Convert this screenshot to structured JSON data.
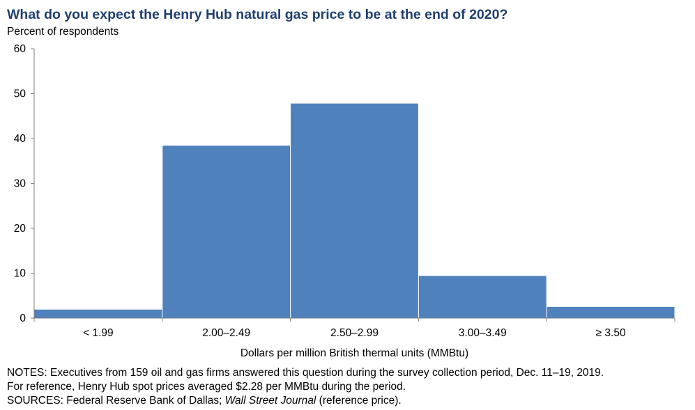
{
  "title": "What do you expect the Henry Hub natural gas price to be at the end of 2020?",
  "ylabel": "Percent of respondents",
  "notes": {
    "line1": "NOTES: Executives from 159 oil and gas firms answered this question during the survey collection period, Dec. 11–19, 2019.",
    "line2": "For reference, Henry Hub spot prices averaged $2.28 per MMBtu during the period.",
    "line3_prefix": "SOURCES: Federal Reserve Bank of Dallas; ",
    "line3_italic": "Wall Street Journal",
    "line3_suffix": " (reference price)."
  },
  "colors": {
    "bar": "#4f81bd",
    "title": "#1f3f6f",
    "axis": "#7f7f7f"
  },
  "chart_data": {
    "type": "bar",
    "title": "What do you expect the Henry Hub natural gas price to be at the end of 2020?",
    "xlabel": "Dollars per million British thermal units (MMBtu)",
    "ylabel": "Percent of respondents",
    "categories": [
      "< 1.99",
      "2.00–2.49",
      "2.50–2.99",
      "3.00–3.49",
      "≥ 3.50"
    ],
    "values": [
      1.9,
      38.4,
      47.8,
      9.4,
      2.5
    ],
    "ylim": [
      0,
      60
    ],
    "yticks": [
      0,
      10,
      20,
      30,
      40,
      50,
      60
    ],
    "grid": false,
    "legend": "none"
  }
}
